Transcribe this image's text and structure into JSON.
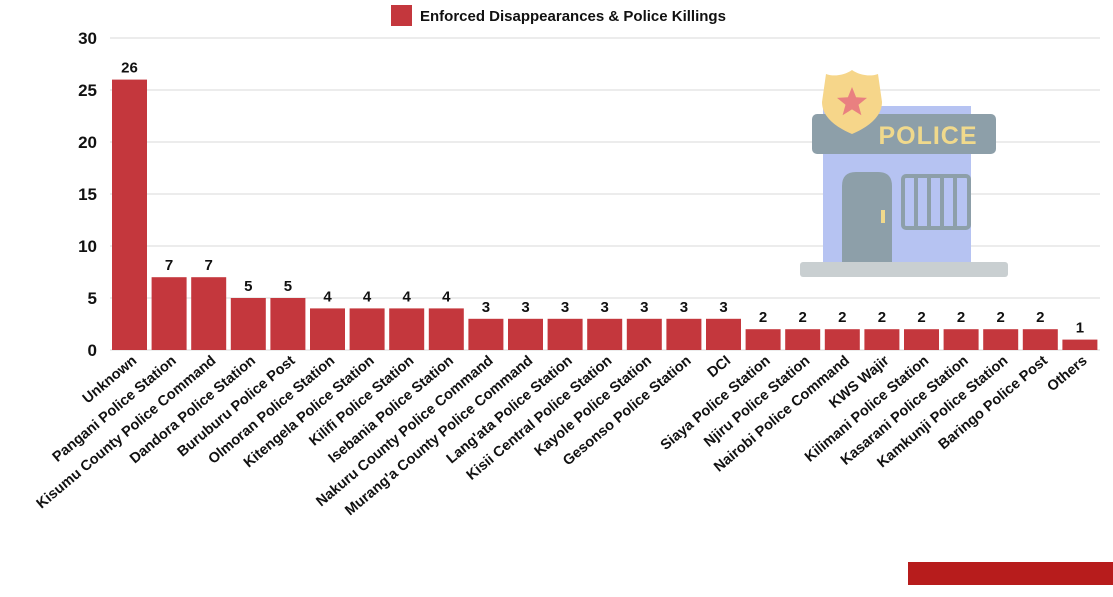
{
  "chart_data": {
    "type": "bar",
    "legend": {
      "label": "Enforced Disappearances & Police Killings",
      "position": "top-center"
    },
    "categories": [
      "Unknown",
      "Pangani Police Station",
      "Kisumu County Police Command",
      "Dandora Police Station",
      "Buruburu Police Post",
      "Olmoran Police Station",
      "Kitengela Police Station",
      "Kilifi Police Station",
      "Isebania Police Station",
      "Nakuru County Police Command",
      "Murang'a County Police Command",
      "Lang'ata Police Station",
      "Kisii Central Police Station",
      "Kayole Police Station",
      "Gesonso Police Station",
      "DCI",
      "Siaya Police Station",
      "Njiru Police Station",
      "Nairobi Police Command",
      "KWS Wajir",
      "Kilimani Police Station",
      "Kasarani Police Station",
      "Kamkunji Police Station",
      "Baringo Police Post",
      "Others"
    ],
    "series": [
      {
        "name": "Enforced Disappearances & Police Killings",
        "values": [
          26,
          7,
          7,
          5,
          5,
          4,
          4,
          4,
          4,
          3,
          3,
          3,
          3,
          3,
          3,
          3,
          2,
          2,
          2,
          2,
          2,
          2,
          2,
          2,
          1
        ]
      }
    ],
    "data_labels": [
      "26",
      "7",
      "7",
      "5",
      "5",
      "4",
      "4",
      "4",
      "4",
      "3",
      "3",
      "3",
      "3",
      "3",
      "3",
      "3",
      "2",
      "2",
      "2",
      "2",
      "2",
      "2",
      "2",
      "2",
      "1"
    ],
    "yticks": [
      "0",
      "5",
      "10",
      "15",
      "20",
      "25",
      "30"
    ],
    "ylim": [
      0,
      30
    ],
    "grid": true,
    "colors": {
      "bar": "#c4373d",
      "grid": "#d9d9d9",
      "accent": "#b71c1c"
    }
  },
  "illustration": {
    "icon": "police-station-icon",
    "sign_text": "POLICE",
    "colors": {
      "sign": "#8d9fa9",
      "building": "#b6c3f2",
      "door": "#8d9fa9",
      "base": "#c9cfd1",
      "badge": "#f6d68a",
      "star": "#e98080",
      "lettering": "#f0d98c"
    }
  }
}
